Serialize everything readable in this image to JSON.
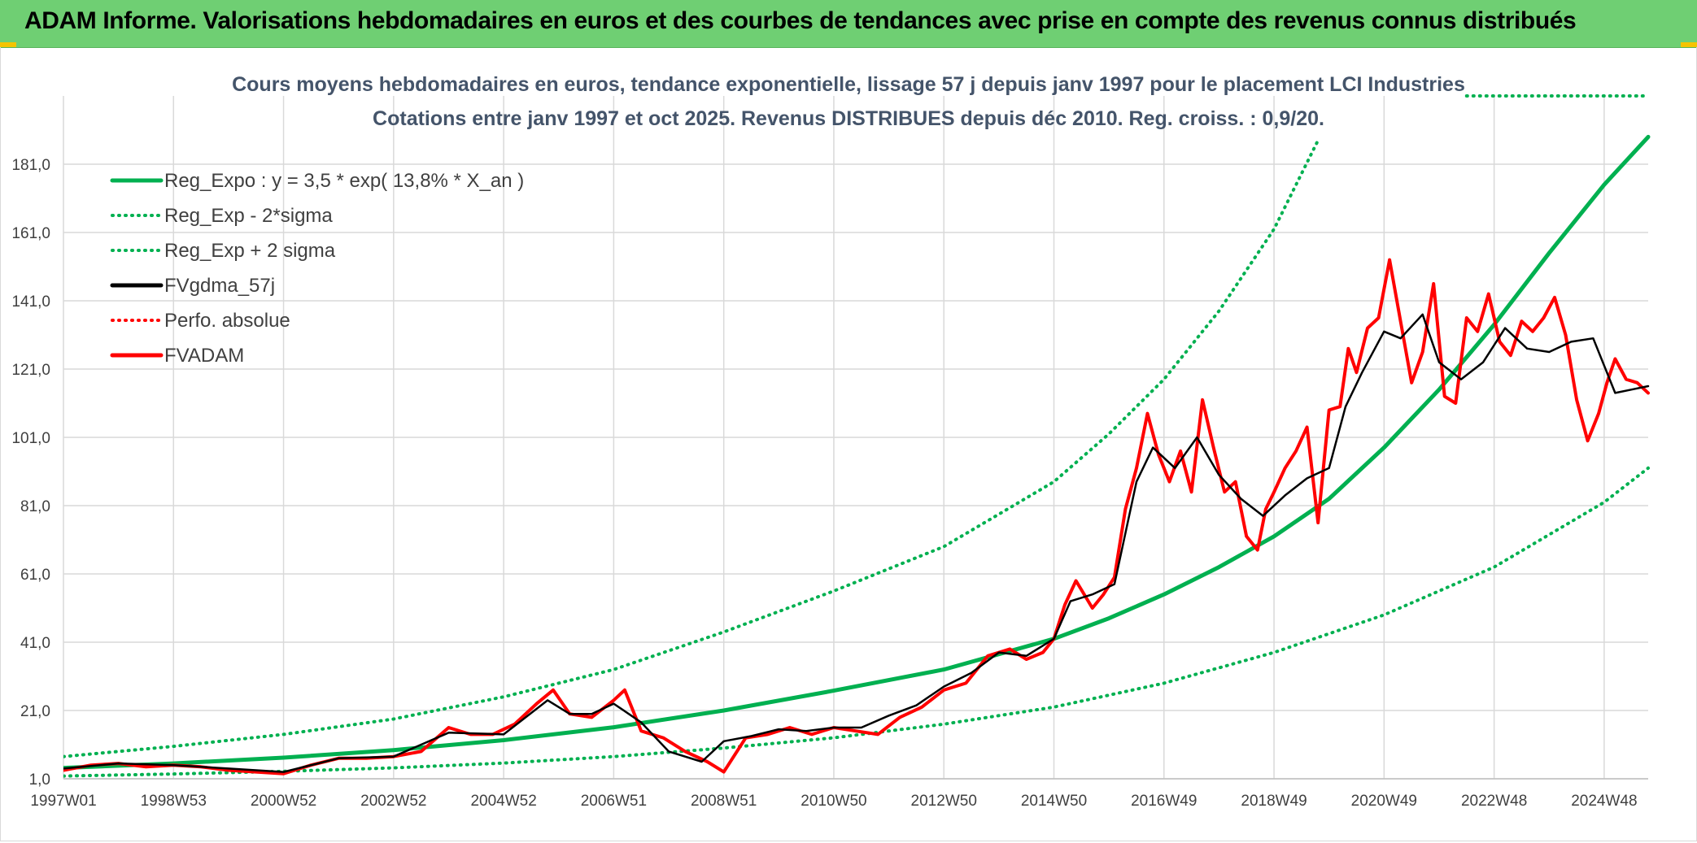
{
  "header": {
    "title": "ADAM Informe. Valorisations hebdomadaires en euros et des courbes de tendances avec prise en compte des revenus connus distribués"
  },
  "colors": {
    "banner": "#6fcf73",
    "green": "#00b050",
    "red": "#ff0000",
    "black": "#000000",
    "grid": "#d9d9d9",
    "title": "#44546a"
  },
  "chart_data": {
    "type": "line",
    "title": "Cours moyens hebdomadaires en euros, tendance exponentielle, lissage 57 j depuis janv 1997 pour le placement LCI Industries",
    "subtitle": "Cotations entre janv 1997 et oct 2025. Revenus DISTRIBUES depuis déc 2010. Reg. croiss. : 0,9/20.",
    "xlabel": "",
    "ylabel": "",
    "x_range": [
      1997.0,
      2025.8
    ],
    "ylim": [
      1.0,
      201.0
    ],
    "x_tick_labels": [
      "1997W01",
      "1998W53",
      "2000W52",
      "2002W52",
      "2004W52",
      "2006W51",
      "2008W51",
      "2010W50",
      "2012W50",
      "2014W50",
      "2016W49",
      "2018W49",
      "2020W49",
      "2022W48",
      "2024W48"
    ],
    "x_tick_years": [
      1997.0,
      1999.0,
      2001.0,
      2003.0,
      2005.0,
      2007.0,
      2009.0,
      2011.0,
      2013.0,
      2015.0,
      2017.0,
      2019.0,
      2021.0,
      2023.0,
      2025.0
    ],
    "y_tick_labels": [
      "1,0",
      "21,0",
      "41,0",
      "61,0",
      "81,0",
      "101,0",
      "121,0",
      "141,0",
      "161,0",
      "181,0"
    ],
    "y_tick_values": [
      1,
      21,
      41,
      61,
      81,
      101,
      121,
      141,
      161,
      181
    ],
    "grid": true,
    "legend_position": "top-left",
    "legend": [
      {
        "label": "Reg_Expo : y = 3,5 * exp( 13,8% *  X_an )",
        "color": "#00b050",
        "style": "solid"
      },
      {
        "label": "Reg_Exp - 2*sigma",
        "color": "#00b050",
        "style": "dotted"
      },
      {
        "label": "Reg_Exp + 2 sigma",
        "color": "#00b050",
        "style": "dotted"
      },
      {
        "label": "FVgdma_57j",
        "color": "#000000",
        "style": "solid"
      },
      {
        "label": "Perfo. absolue",
        "color": "#ff0000",
        "style": "dotted"
      },
      {
        "label": "FVADAM",
        "color": "#ff0000",
        "style": "solid"
      }
    ],
    "series": [
      {
        "name": "Reg_Expo : y = 3,5 * exp( 13,8% *  X_an )",
        "x": [
          1997.0,
          1999.0,
          2001.0,
          2003.0,
          2005.0,
          2007.0,
          2009.0,
          2011.0,
          2013.0,
          2015.0,
          2016.0,
          2017.0,
          2018.0,
          2019.0,
          2020.0,
          2021.0,
          2022.0,
          2023.0,
          2024.0,
          2025.0,
          2025.8
        ],
        "y": [
          4.2,
          5.5,
          7.2,
          9.4,
          12.3,
          16.1,
          21.0,
          26.8,
          33.0,
          42.0,
          48.0,
          55.0,
          63.0,
          72.0,
          83.0,
          98.0,
          115.0,
          134.0,
          155.0,
          175.0,
          189.0
        ]
      },
      {
        "name": "Reg_Exp - 2*sigma",
        "x": [
          1997.0,
          1999.0,
          2001.0,
          2003.0,
          2005.0,
          2007.0,
          2009.0,
          2011.0,
          2013.0,
          2015.0,
          2017.0,
          2019.0,
          2021.0,
          2023.0,
          2025.0,
          2025.8
        ],
        "y": [
          1.8,
          2.4,
          3.2,
          4.2,
          5.6,
          7.5,
          10.0,
          13.0,
          17.0,
          22.0,
          29.0,
          38.0,
          49.0,
          63.0,
          82.0,
          92.0
        ]
      },
      {
        "name": "Reg_Exp + 2 sigma",
        "x": [
          1997.0,
          1999.0,
          2001.0,
          2003.0,
          2005.0,
          2007.0,
          2009.0,
          2011.0,
          2013.0,
          2015.0,
          2016.0,
          2017.0,
          2018.0,
          2019.0,
          2019.8
        ],
        "y": [
          7.5,
          10.5,
          14.0,
          18.5,
          25.0,
          33.0,
          44.0,
          56.0,
          69.0,
          88.0,
          102.0,
          118.0,
          138.0,
          162.0,
          188.0
        ]
      },
      {
        "name": "Reg_Exp + 2 sigma (right edge, top)",
        "x": [
          2022.5,
          2025.8
        ],
        "y": [
          201.0,
          201.0
        ]
      },
      {
        "name": "FVgdma_57j",
        "x": [
          1997.0,
          1998.0,
          1999.0,
          2000.0,
          2001.0,
          2002.0,
          2003.0,
          2004.0,
          2005.0,
          2005.8,
          2006.2,
          2006.6,
          2007.0,
          2007.5,
          2008.0,
          2008.6,
          2009.0,
          2009.5,
          2010.0,
          2010.5,
          2011.0,
          2011.5,
          2012.0,
          2012.5,
          2013.0,
          2013.5,
          2014.0,
          2014.5,
          2015.0,
          2015.3,
          2015.7,
          2016.1,
          2016.5,
          2016.8,
          2017.2,
          2017.6,
          2018.0,
          2018.4,
          2018.8,
          2019.2,
          2019.6,
          2020.0,
          2020.3,
          2020.6,
          2021.0,
          2021.3,
          2021.7,
          2022.0,
          2022.4,
          2022.8,
          2023.2,
          2023.6,
          2024.0,
          2024.4,
          2024.8,
          2025.2,
          2025.5,
          2025.8
        ],
        "y": [
          4.0,
          5.5,
          5.0,
          4.0,
          3.0,
          7.0,
          7.5,
          14.5,
          14.0,
          24.0,
          20.0,
          20.0,
          23.0,
          17.5,
          9.0,
          6.0,
          12.0,
          13.5,
          15.5,
          15.0,
          16.0,
          16.0,
          19.5,
          22.5,
          28.0,
          32.0,
          38.0,
          37.0,
          42.0,
          53.0,
          55.0,
          58.0,
          88.0,
          98.0,
          92.0,
          101.0,
          90.0,
          83.0,
          78.0,
          84.0,
          89.0,
          92.0,
          110.0,
          120.0,
          132.0,
          130.0,
          137.0,
          123.0,
          118.0,
          123.0,
          133.0,
          127.0,
          126.0,
          129.0,
          130.0,
          114.0,
          115.0,
          116.0
        ]
      },
      {
        "name": "FVADAM",
        "x": [
          1997.0,
          1997.5,
          1998.0,
          1998.5,
          1999.0,
          1999.5,
          2000.0,
          2000.5,
          2001.0,
          2001.5,
          2002.0,
          2002.5,
          2003.0,
          2003.5,
          2004.0,
          2004.4,
          2004.8,
          2005.2,
          2005.6,
          2005.9,
          2006.2,
          2006.6,
          2007.0,
          2007.2,
          2007.5,
          2007.9,
          2008.3,
          2008.7,
          2009.0,
          2009.4,
          2009.8,
          2010.2,
          2010.6,
          2011.0,
          2011.4,
          2011.8,
          2012.2,
          2012.6,
          2013.0,
          2013.4,
          2013.8,
          2014.2,
          2014.5,
          2014.8,
          2015.0,
          2015.2,
          2015.4,
          2015.7,
          2015.9,
          2016.1,
          2016.3,
          2016.5,
          2016.7,
          2016.9,
          2017.1,
          2017.3,
          2017.5,
          2017.7,
          2017.9,
          2018.1,
          2018.3,
          2018.5,
          2018.7,
          2018.85,
          2019.0,
          2019.2,
          2019.4,
          2019.6,
          2019.8,
          2020.0,
          2020.2,
          2020.35,
          2020.5,
          2020.7,
          2020.9,
          2021.1,
          2021.3,
          2021.5,
          2021.7,
          2021.9,
          2022.1,
          2022.3,
          2022.5,
          2022.7,
          2022.9,
          2023.1,
          2023.3,
          2023.5,
          2023.7,
          2023.9,
          2024.1,
          2024.3,
          2024.5,
          2024.7,
          2024.9,
          2025.05,
          2025.2,
          2025.4,
          2025.6,
          2025.8
        ],
        "y": [
          3.5,
          5.0,
          5.5,
          4.5,
          5.0,
          4.5,
          3.5,
          3.0,
          2.5,
          5.0,
          7.0,
          7.0,
          7.5,
          9.0,
          16.0,
          14.0,
          14.0,
          17.0,
          23.0,
          27.0,
          20.0,
          19.0,
          24.0,
          27.0,
          15.0,
          13.0,
          9.0,
          6.0,
          3.0,
          13.0,
          14.0,
          16.0,
          14.0,
          16.0,
          15.0,
          14.0,
          19.0,
          22.0,
          27.0,
          29.0,
          37.0,
          39.0,
          36.0,
          38.0,
          42.0,
          52.0,
          59.0,
          51.0,
          55.0,
          60.0,
          80.0,
          92.0,
          108.0,
          96.0,
          88.0,
          97.0,
          85.0,
          112.0,
          98.0,
          85.0,
          88.0,
          72.0,
          68.0,
          80.0,
          85.0,
          92.0,
          97.0,
          104.0,
          76.0,
          109.0,
          110.0,
          127.0,
          120.0,
          133.0,
          136.0,
          153.0,
          135.0,
          117.0,
          126.0,
          146.0,
          113.0,
          111.0,
          136.0,
          132.0,
          143.0,
          129.0,
          125.0,
          135.0,
          132.0,
          136.0,
          142.0,
          131.0,
          112.0,
          100.0,
          108.0,
          117.0,
          124.0,
          118.0,
          117.0,
          114.0
        ]
      }
    ]
  }
}
